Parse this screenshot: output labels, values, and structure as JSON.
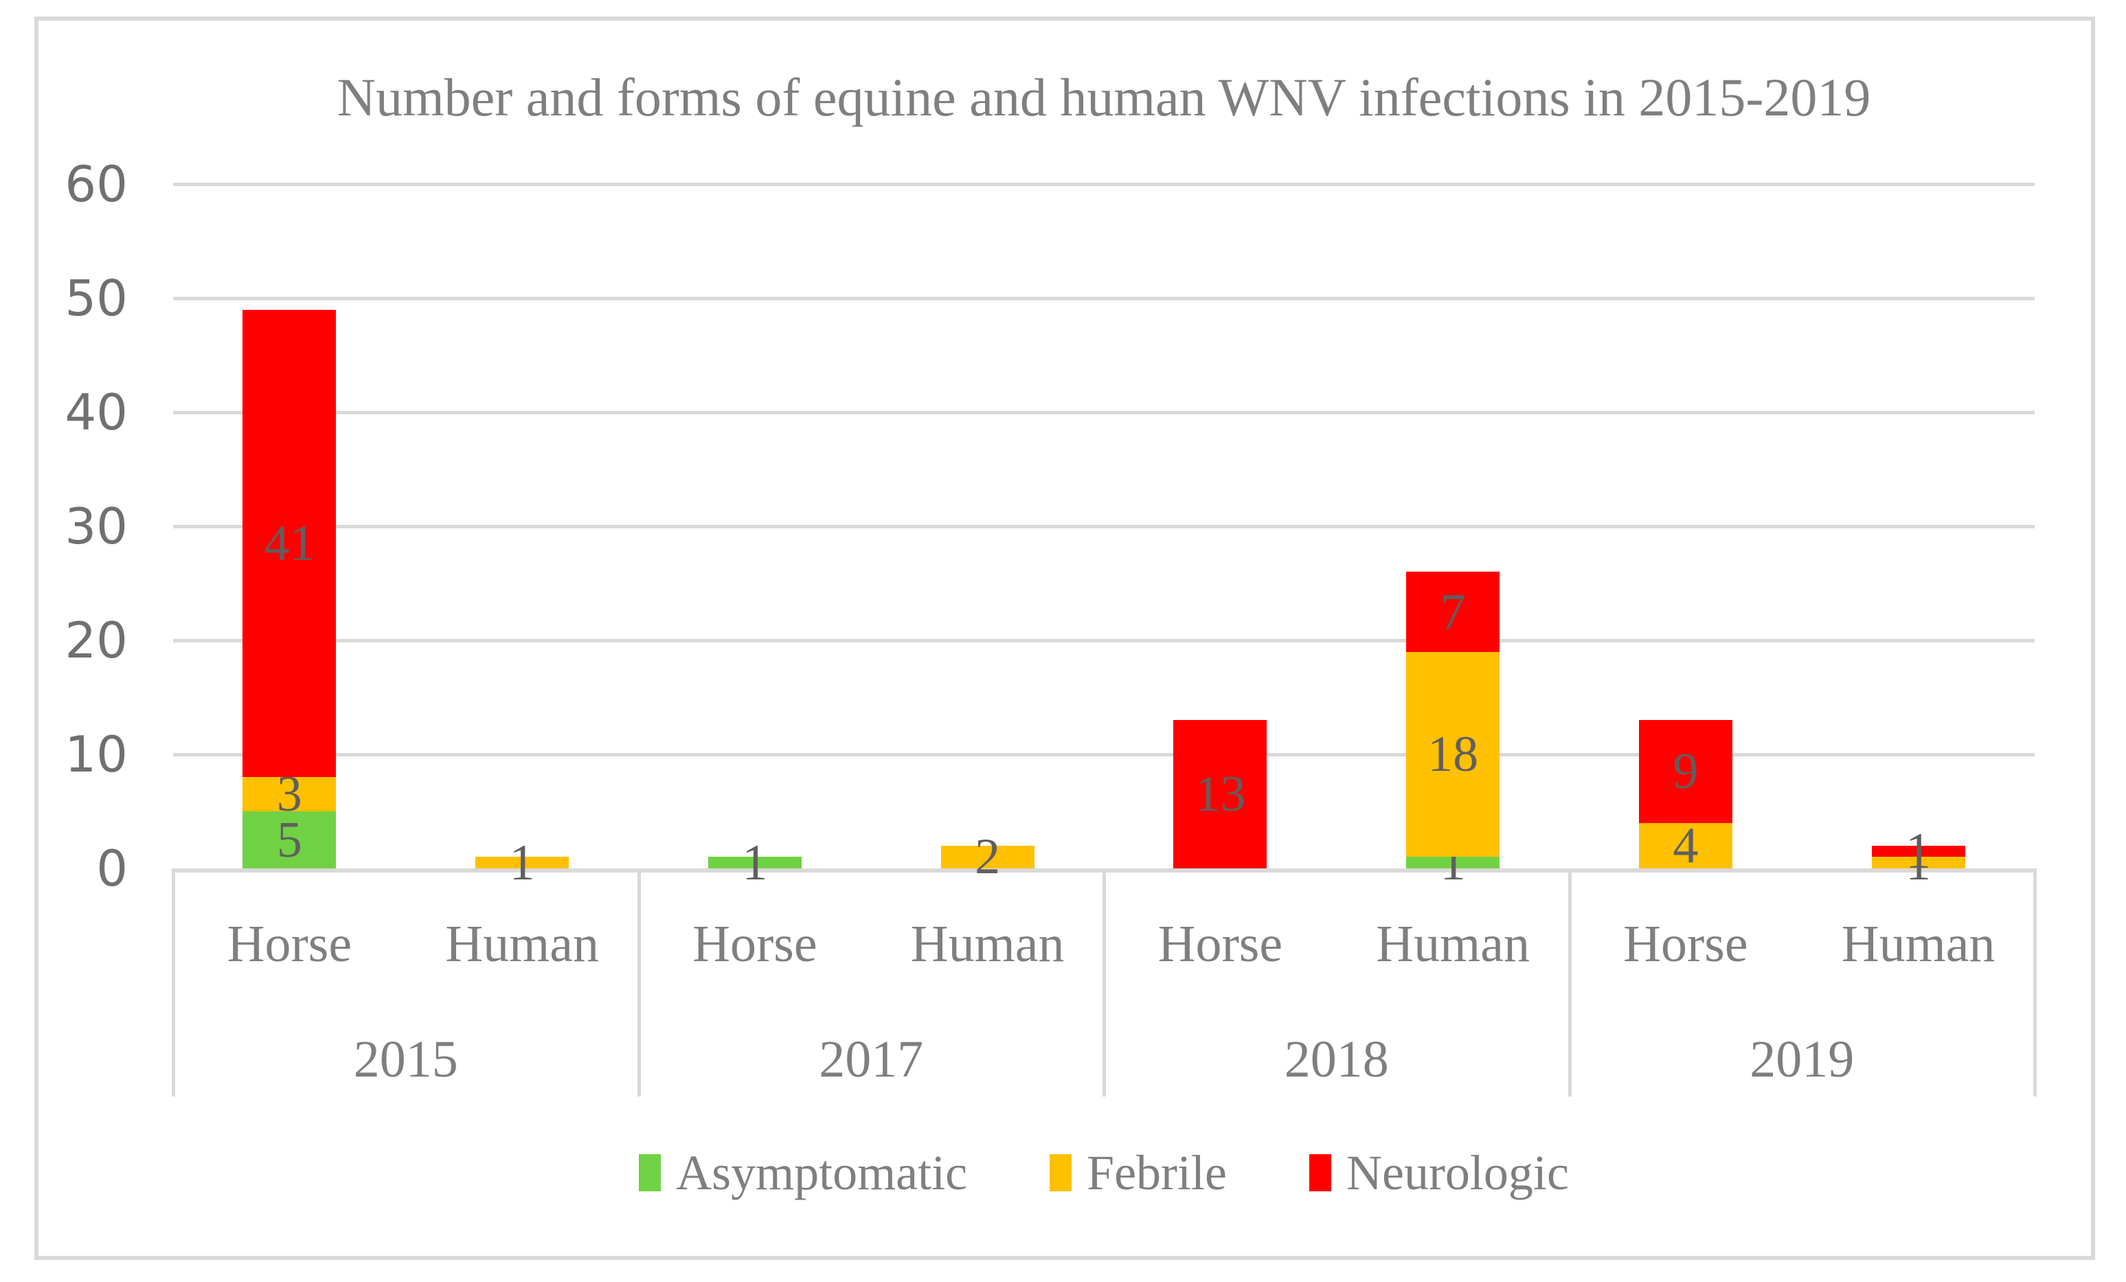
{
  "chart_data": {
    "type": "bar",
    "stacked": true,
    "title": "Number and forms of equine and human WNV infections in 2015-2019",
    "y_axis": {
      "min": 0,
      "max": 60,
      "step": 10,
      "ticks": [
        0,
        10,
        20,
        30,
        40,
        50,
        60
      ],
      "grid": true
    },
    "series_order": [
      "Asymptomatic",
      "Febrile",
      "Neurologic"
    ],
    "colors": {
      "Asymptomatic": "#6FD243",
      "Febrile": "#FFC000",
      "Neurologic": "#FF0000"
    },
    "legend": {
      "position": "bottom",
      "items": [
        {
          "label": "Asymptomatic",
          "color": "#6FD243"
        },
        {
          "label": "Febrile",
          "color": "#FFC000"
        },
        {
          "label": "Neurologic",
          "color": "#FF0000"
        }
      ]
    },
    "groups": [
      {
        "year": "2015",
        "bars": [
          {
            "category": "Horse",
            "segments": [
              {
                "name": "Asymptomatic",
                "value": 5
              },
              {
                "name": "Febrile",
                "value": 3
              },
              {
                "name": "Neurologic",
                "value": 41
              }
            ]
          },
          {
            "category": "Human",
            "segments": [
              {
                "name": "Febrile",
                "value": 1
              }
            ]
          }
        ]
      },
      {
        "year": "2017",
        "bars": [
          {
            "category": "Horse",
            "segments": [
              {
                "name": "Asymptomatic",
                "value": 1
              }
            ]
          },
          {
            "category": "Human",
            "segments": [
              {
                "name": "Febrile",
                "value": 2
              }
            ]
          }
        ]
      },
      {
        "year": "2018",
        "bars": [
          {
            "category": "Horse",
            "segments": [
              {
                "name": "Neurologic",
                "value": 13
              }
            ]
          },
          {
            "category": "Human",
            "segments": [
              {
                "name": "Asymptomatic",
                "value": 1
              },
              {
                "name": "Febrile",
                "value": 18
              },
              {
                "name": "Neurologic",
                "value": 7
              }
            ]
          }
        ]
      },
      {
        "year": "2019",
        "bars": [
          {
            "category": "Horse",
            "segments": [
              {
                "name": "Febrile",
                "value": 4
              },
              {
                "name": "Neurologic",
                "value": 9
              }
            ]
          },
          {
            "category": "Human",
            "segments": [
              {
                "name": "Febrile",
                "value": 1
              },
              {
                "name": "Neurologic",
                "value": 1
              }
            ]
          }
        ]
      }
    ]
  }
}
